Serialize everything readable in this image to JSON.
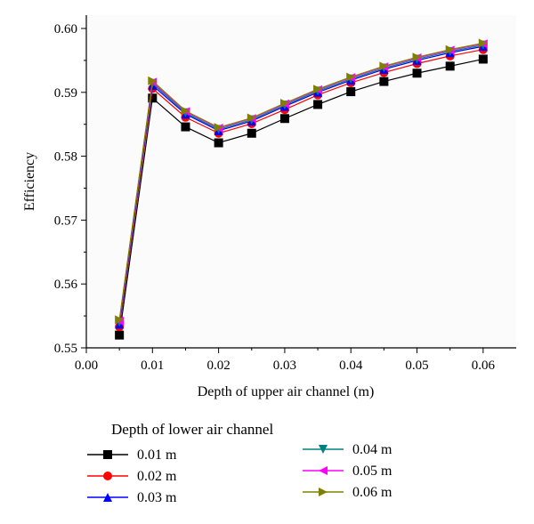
{
  "chart_data": {
    "type": "line",
    "xlabel": "Depth of upper air channel (m)",
    "ylabel": "Efficiency",
    "xlim": [
      0.0,
      0.065
    ],
    "ylim": [
      0.55,
      0.6
    ],
    "xticks": [
      "0.00",
      "0.01",
      "0.02",
      "0.03",
      "0.04",
      "0.05",
      "0.06"
    ],
    "yticks": [
      "0.55",
      "0.56",
      "0.57",
      "0.58",
      "0.59",
      "0.60"
    ],
    "grid": false,
    "legend_title": "Depth of lower air channel",
    "legend_position": "bottom",
    "x": [
      0.005,
      0.01,
      0.015,
      0.02,
      0.025,
      0.03,
      0.035,
      0.04,
      0.045,
      0.05,
      0.055,
      0.06
    ],
    "series": [
      {
        "name": "0.01 m",
        "color": "#000000",
        "marker": "square",
        "values": [
          0.552,
          0.5891,
          0.5846,
          0.5821,
          0.5836,
          0.5859,
          0.5881,
          0.5901,
          0.5917,
          0.593,
          0.5941,
          0.5952
        ]
      },
      {
        "name": "0.02 m",
        "color": "#ff0000",
        "marker": "circle",
        "values": [
          0.5533,
          0.5906,
          0.5861,
          0.5836,
          0.5851,
          0.5873,
          0.5896,
          0.5915,
          0.5931,
          0.5945,
          0.5957,
          0.5967
        ]
      },
      {
        "name": "0.03 m",
        "color": "#0000ff",
        "marker": "triangle-up",
        "values": [
          0.5537,
          0.5911,
          0.5866,
          0.584,
          0.5855,
          0.5878,
          0.59,
          0.5919,
          0.5936,
          0.595,
          0.5962,
          0.5972
        ]
      },
      {
        "name": "0.04 m",
        "color": "#008080",
        "marker": "triangle-down",
        "values": [
          0.554,
          0.5914,
          0.5868,
          0.5842,
          0.5857,
          0.588,
          0.5902,
          0.5921,
          0.5938,
          0.5952,
          0.5964,
          0.5974
        ]
      },
      {
        "name": "0.05 m",
        "color": "#ff00ff",
        "marker": "triangle-left",
        "values": [
          0.5542,
          0.5916,
          0.587,
          0.5844,
          0.5859,
          0.5882,
          0.5904,
          0.5923,
          0.594,
          0.5954,
          0.5966,
          0.5976
        ]
      },
      {
        "name": "0.06 m",
        "color": "#808000",
        "marker": "triangle-right",
        "values": [
          0.5544,
          0.5918,
          0.5871,
          0.5845,
          0.586,
          0.5883,
          0.5905,
          0.5924,
          0.5941,
          0.5955,
          0.5967,
          0.5977
        ]
      }
    ]
  }
}
